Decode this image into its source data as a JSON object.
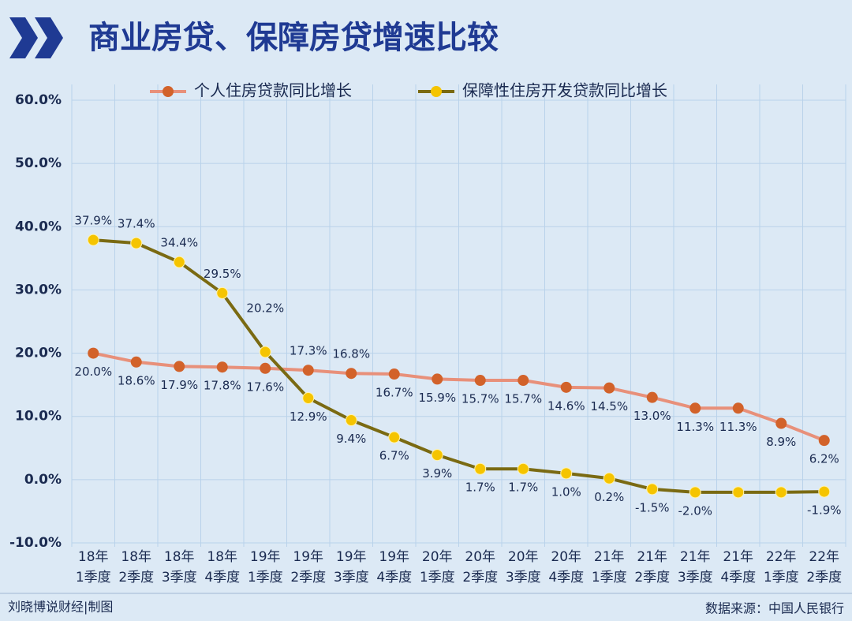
{
  "chart_data": {
    "type": "line",
    "title": "商业房贷、保障房贷增速比较",
    "credit": "刘晓博说财经|制图",
    "source": "数据来源：中国人民银行",
    "categories": [
      [
        "18年",
        "1季度"
      ],
      [
        "18年",
        "2季度"
      ],
      [
        "18年",
        "3季度"
      ],
      [
        "18年",
        "4季度"
      ],
      [
        "19年",
        "1季度"
      ],
      [
        "19年",
        "2季度"
      ],
      [
        "19年",
        "3季度"
      ],
      [
        "19年",
        "4季度"
      ],
      [
        "20年",
        "1季度"
      ],
      [
        "20年",
        "2季度"
      ],
      [
        "20年",
        "3季度"
      ],
      [
        "20年",
        "4季度"
      ],
      [
        "21年",
        "1季度"
      ],
      [
        "21年",
        "2季度"
      ],
      [
        "21年",
        "3季度"
      ],
      [
        "21年",
        "4季度"
      ],
      [
        "22年",
        "1季度"
      ],
      [
        "22年",
        "2季度"
      ]
    ],
    "series": [
      {
        "name": "个人住房贷款同比增长",
        "color": "#e8907a",
        "marker_color": "#d2622a",
        "values": [
          20.0,
          18.6,
          17.9,
          17.8,
          17.6,
          17.3,
          16.8,
          16.7,
          15.9,
          15.7,
          15.7,
          14.6,
          14.5,
          13.0,
          11.3,
          11.3,
          8.9,
          6.2
        ],
        "value_labels": [
          "20.0%",
          "18.6%",
          "17.9%",
          "17.8%",
          "17.6%",
          "17.3%",
          "16.8%",
          "16.7%",
          "15.9%",
          "15.7%",
          "15.7%",
          "14.6%",
          "14.5%",
          "13.0%",
          "11.3%",
          "11.3%",
          "8.9%",
          "6.2%"
        ]
      },
      {
        "name": "保障性住房开发贷款同比增长",
        "color": "#7a6a12",
        "marker_color": "#f5c400",
        "values": [
          37.9,
          37.4,
          34.4,
          29.5,
          20.2,
          12.9,
          9.4,
          6.7,
          3.9,
          1.7,
          1.7,
          1.0,
          0.2,
          -1.5,
          -2.0,
          -2.0,
          -2.0,
          -1.9
        ],
        "value_labels": [
          "37.9%",
          "37.4%",
          "34.4%",
          "29.5%",
          "20.2%",
          "12.9%",
          "9.4%",
          "6.7%",
          "3.9%",
          "1.7%",
          "1.7%",
          "1.0%",
          "0.2%",
          "-1.5%",
          "-2.0%",
          null,
          null,
          "-1.9%"
        ]
      }
    ],
    "ylim": [
      -10,
      60
    ],
    "yticks": [
      {
        "value": -10,
        "label": "-10.0%"
      },
      {
        "value": 0,
        "label": "0.0%"
      },
      {
        "value": 10,
        "label": "10.0%"
      },
      {
        "value": 20,
        "label": "20.0%"
      },
      {
        "value": 30,
        "label": "30.0%"
      },
      {
        "value": 40,
        "label": "40.0%"
      },
      {
        "value": 50,
        "label": "50.0%"
      },
      {
        "value": 60,
        "label": "60.0%"
      }
    ],
    "grid": true
  }
}
